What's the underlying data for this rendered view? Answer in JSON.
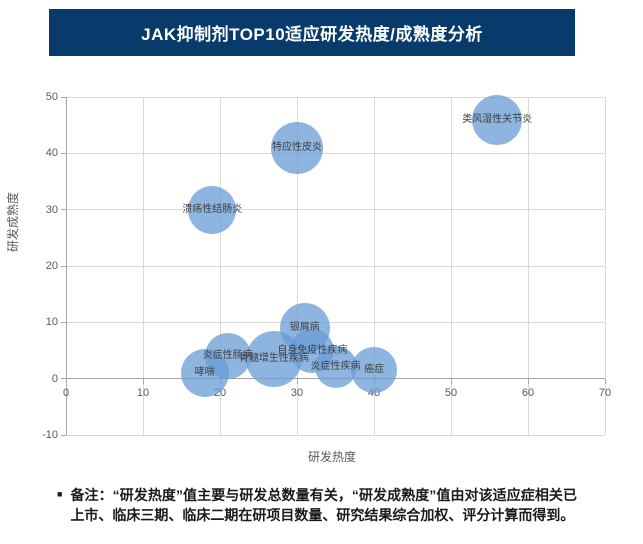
{
  "title": "JAK抑制剂TOP10适应研发热度/成熟度分析",
  "colors": {
    "title_bg": "#083B6C",
    "title_text": "#FFFFFF",
    "gridline": "#D9D9D9",
    "axis_line": "#A6A6A6",
    "tick_label": "#595959",
    "bubble_fill": "#689CD4",
    "bubble_opacity": 0.75,
    "bubble_label": "#3F3F3F",
    "note_text": "#1A1A1A"
  },
  "chart_data": {
    "type": "scatter",
    "subtype": "bubble",
    "title": "JAK抑制剂TOP10适应研发热度/成熟度分析",
    "xlabel": "研发热度",
    "ylabel": "研发成熟度",
    "xlim": [
      0,
      70
    ],
    "ylim": [
      -10,
      50
    ],
    "x_ticks": [
      0,
      10,
      20,
      30,
      40,
      50,
      60,
      70
    ],
    "y_ticks": [
      50,
      40,
      30,
      20,
      10,
      0,
      -10
    ],
    "grid": true,
    "legend": false,
    "points": [
      {
        "id": "rheumatoid-arthritis",
        "label": "类风湿性关节炎",
        "x": 56,
        "y": 46,
        "r": 25
      },
      {
        "id": "atopic-dermatitis",
        "label": "特应性皮炎",
        "x": 30,
        "y": 41,
        "r": 26
      },
      {
        "id": "ulcerative-colitis",
        "label": "溃疡性结肠炎",
        "x": 19,
        "y": 30,
        "r": 24
      },
      {
        "id": "psoriasis",
        "label": "银屑病",
        "x": 31,
        "y": 9,
        "r": 25
      },
      {
        "id": "autoimmune-disease",
        "label": "自身免疫性疾病",
        "x": 32,
        "y": 5,
        "r": 22
      },
      {
        "id": "inflammatory-bowel-disease",
        "label": "炎症性肠病",
        "x": 21,
        "y": 4,
        "r": 23
      },
      {
        "id": "myeloproliferative-disease",
        "label": "骨髓增生性疾病",
        "x": 27,
        "y": 3.5,
        "r": 28
      },
      {
        "id": "asthma",
        "label": "哮喘",
        "x": 18,
        "y": 1,
        "r": 24
      },
      {
        "id": "inflammatory-disease",
        "label": "炎症性疾病",
        "x": 35,
        "y": 2,
        "r": 21
      },
      {
        "id": "cancer",
        "label": "癌症",
        "x": 40,
        "y": 1.5,
        "r": 23
      }
    ]
  },
  "note": {
    "bullet": "■",
    "text": "备注：“研发热度”值主要与研发总数量有关，“研发成熟度”值由对该适应症相关已上市、临床三期、临床二期在研项目数量、研究结果综合加权、评分计算而得到。"
  }
}
